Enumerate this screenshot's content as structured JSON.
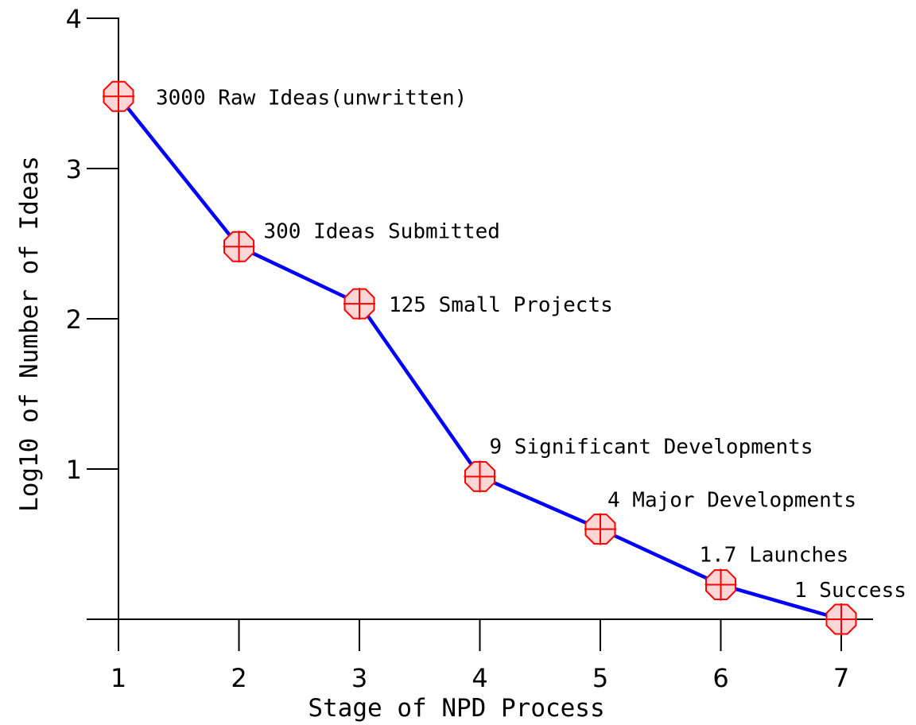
{
  "chart_data": {
    "type": "line",
    "title": "",
    "xlabel": "Stage of NPD Process",
    "ylabel": "Log10 of Number of Ideas",
    "xlim": [
      1,
      7
    ],
    "ylim": [
      0,
      4
    ],
    "x_ticks": [
      "1",
      "2",
      "3",
      "4",
      "5",
      "6",
      "7"
    ],
    "y_ticks": [
      "1",
      "2",
      "3",
      "4"
    ],
    "grid": false,
    "legend": "none",
    "x": [
      1,
      2,
      3,
      4,
      5,
      6,
      7
    ],
    "series": [
      {
        "values": [
          3.48,
          2.48,
          2.1,
          0.95,
          0.6,
          0.23,
          0.0
        ],
        "point_labels": [
          "3000 Raw Ideas(unwritten)",
          "300 Ideas Submitted",
          "125 Small Projects",
          "9 Significant Developments",
          "4 Major Developments",
          "1.7 Launches",
          "1 Success"
        ],
        "line_color": "#0000ff",
        "marker": "octagon-crosshair",
        "marker_edge_color": "#ff0000",
        "marker_fill_color": "#ffd6d6"
      }
    ]
  }
}
